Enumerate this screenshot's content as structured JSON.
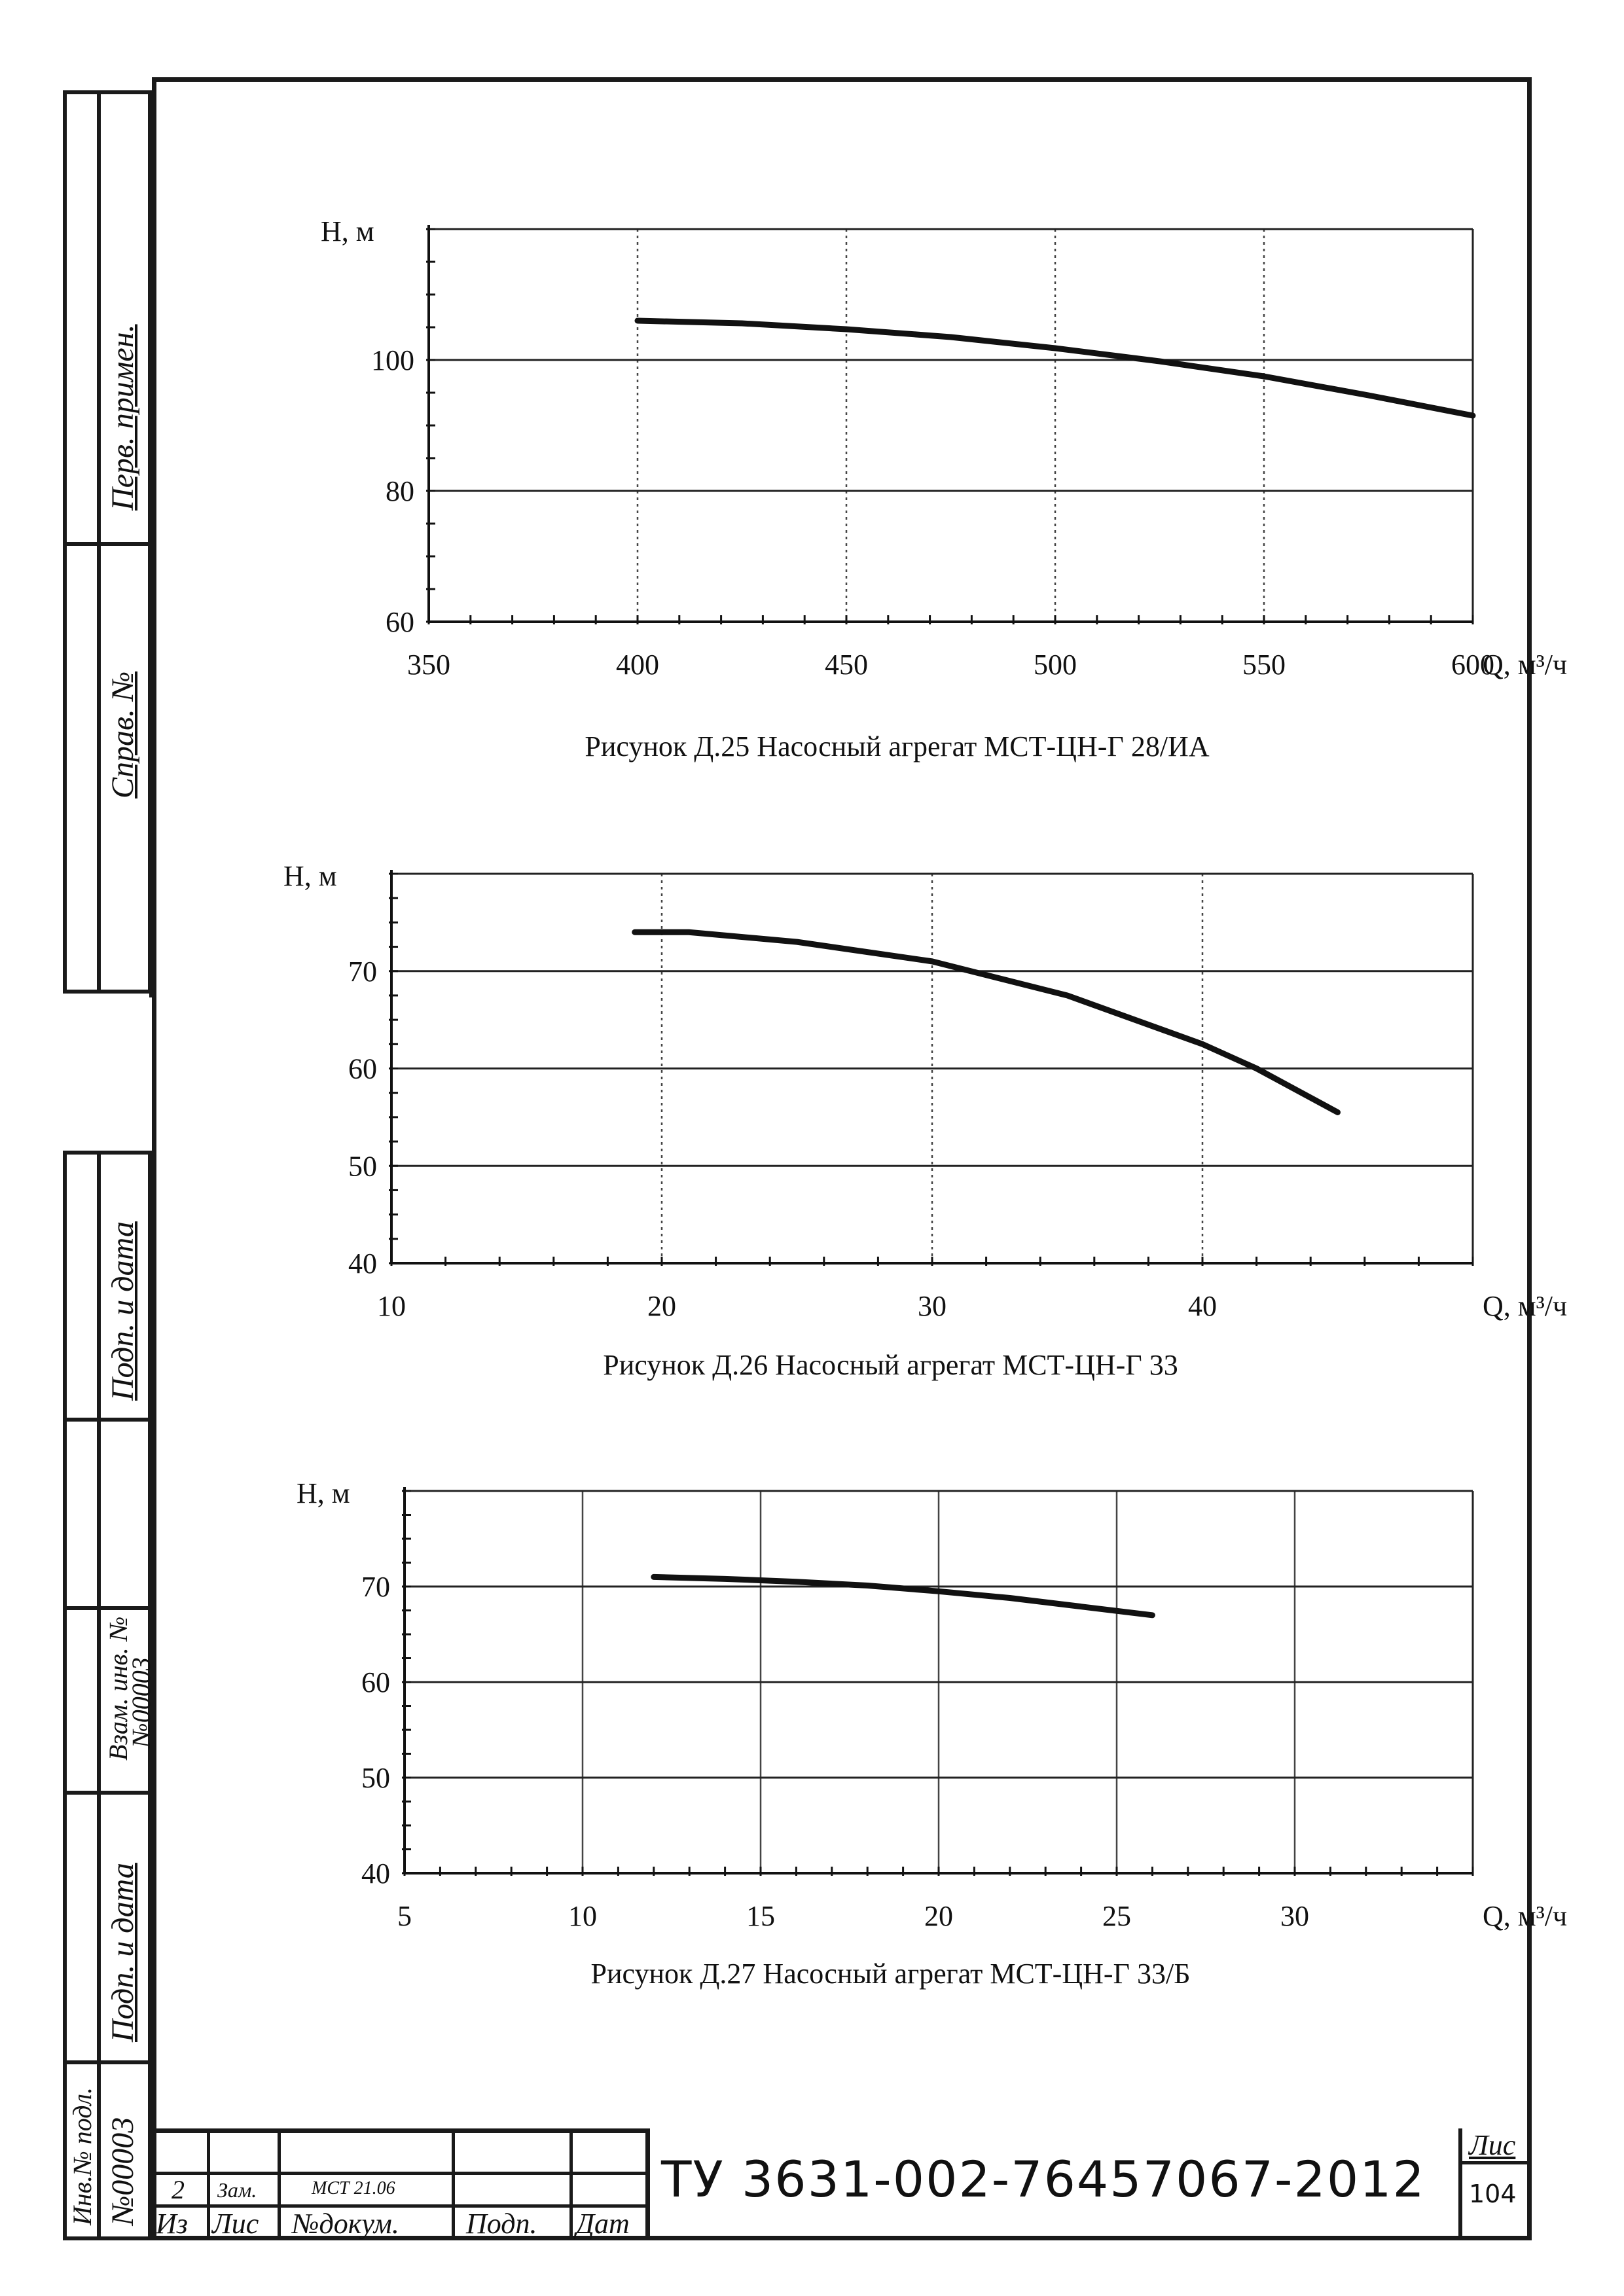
{
  "sidebar": {
    "perv_primen": "Перв. примен.",
    "sprav_no": "Справ. №",
    "podp_data_1": "Подп. и дата",
    "vzam_inv": "Взам. инв. №",
    "vzam_inv_value": "№00003",
    "podp_data_2": "Подп. и дата",
    "inv_podl": "Инв.№ подл.",
    "inv_podl_value": "№00003"
  },
  "chart_data": [
    {
      "type": "line",
      "title": "",
      "ylabel": "H, м",
      "xlabel": "Q, м³/ч",
      "xlim": [
        350,
        600
      ],
      "ylim": [
        60,
        120
      ],
      "x_ticks": [
        350,
        400,
        450,
        500,
        550,
        600
      ],
      "y_ticks": [
        60,
        80,
        100
      ],
      "grid": true,
      "series": [
        {
          "x": [
            400,
            425,
            450,
            475,
            500,
            525,
            550,
            575,
            600
          ],
          "y": [
            106,
            105.6,
            104.7,
            103.5,
            101.8,
            99.8,
            97.5,
            94.6,
            91.5
          ]
        }
      ],
      "caption": "Рисунок Д.25 Насосный агрегат МСТ-ЦН-Г 28/ИА"
    },
    {
      "type": "line",
      "title": "",
      "ylabel": "H, м",
      "xlabel": "Q, м³/ч",
      "xlim": [
        10,
        50
      ],
      "ylim": [
        40,
        80
      ],
      "x_ticks": [
        10,
        20,
        30,
        40
      ],
      "y_ticks": [
        40,
        50,
        60,
        70
      ],
      "grid": true,
      "series": [
        {
          "x": [
            19,
            21,
            25,
            30,
            35,
            40,
            42,
            45
          ],
          "y": [
            74,
            74,
            73,
            71,
            67.5,
            62.5,
            60,
            55.5
          ]
        }
      ],
      "caption": "Рисунок Д.26 Насосный агрегат МСТ-ЦН-Г 33"
    },
    {
      "type": "line",
      "title": "",
      "ylabel": "H, м",
      "xlabel": "Q, м³/ч",
      "xlim": [
        5,
        35
      ],
      "ylim": [
        40,
        80
      ],
      "x_ticks": [
        5,
        10,
        15,
        20,
        25,
        30
      ],
      "y_ticks": [
        40,
        50,
        60,
        70
      ],
      "grid": true,
      "series": [
        {
          "x": [
            12,
            14,
            16,
            18,
            20,
            22,
            24,
            26
          ],
          "y": [
            71,
            70.8,
            70.5,
            70.1,
            69.5,
            68.8,
            67.9,
            67
          ]
        }
      ],
      "caption": "Рисунок Д.27 Насосный агрегат МСТ-ЦН-Г 33/Б"
    }
  ],
  "title_block": {
    "row1": {
      "izm": "2",
      "list": "Зам.",
      "doc_no": "МСТ 21.06",
      "podp": "",
      "data": ""
    },
    "headers": {
      "izm": "Из",
      "list": "Лис",
      "doc_no": "№докум.",
      "podp": "Подп.",
      "data": "Дат"
    },
    "doc_code": "ТУ 3631-002-76457067-2012",
    "sheet_label": "Лис",
    "sheet_no": "104"
  }
}
